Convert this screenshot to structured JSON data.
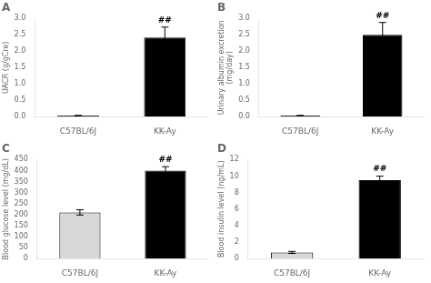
{
  "chart_data": [
    {
      "type": "bar",
      "title": "A",
      "ylabel": "UACR (g/gCre)",
      "categories": [
        "C57BL/6J",
        "KK-Ay"
      ],
      "values": [
        0.03,
        2.42
      ],
      "errors": [
        0.01,
        0.32
      ],
      "colors": [
        "black",
        "black"
      ],
      "ylim": [
        0,
        3.0
      ],
      "yticks": [
        {
          "value": 0,
          "label": "0.0"
        },
        0.5,
        {
          "value": 1,
          "label": "1.0"
        },
        1.5,
        {
          "value": 2,
          "label": "2.0"
        },
        2.5,
        {
          "value": 3,
          "label": "3.0"
        }
      ],
      "annotations": [
        {
          "category": "KK-Ay",
          "text": "##"
        }
      ],
      "grid": false
    },
    {
      "type": "bar",
      "title": "B",
      "ylabel": "Urinary albumin excretion\n(mg/day)",
      "categories": [
        "C57BL/6J",
        "KK-Ay"
      ],
      "values": [
        0.03,
        2.5
      ],
      "errors": [
        0.01,
        0.38
      ],
      "colors": [
        "black",
        "black"
      ],
      "ylim": [
        0,
        3.0
      ],
      "yticks": [
        {
          "value": 0,
          "label": "0.0"
        },
        0.5,
        {
          "value": 1,
          "label": "1.0"
        },
        1.5,
        {
          "value": 2,
          "label": "2.0"
        },
        2.5,
        {
          "value": 3,
          "label": "3.0"
        }
      ],
      "annotations": [
        {
          "category": "KK-Ay",
          "text": "##"
        }
      ],
      "grid": false
    },
    {
      "type": "bar",
      "title": "C",
      "ylabel": "Blood glucose level (mg/dL)",
      "categories": [
        "C57BL/6J",
        "KK-Ay"
      ],
      "values": [
        210,
        400
      ],
      "errors": [
        12,
        18
      ],
      "colors": [
        "#d8d8d8",
        "black"
      ],
      "ylim": [
        0,
        450
      ],
      "yticks": [
        0,
        50,
        100,
        150,
        200,
        250,
        300,
        350,
        400,
        450
      ],
      "annotations": [
        {
          "category": "KK-Ay",
          "text": "##"
        }
      ],
      "grid": false
    },
    {
      "type": "bar",
      "title": "D",
      "ylabel": "Blood insulin level (ng/mL)",
      "categories": [
        "C57BL/6J",
        "KK-Ay"
      ],
      "values": [
        0.75,
        9.5
      ],
      "errors": [
        0.12,
        0.5
      ],
      "colors": [
        "#d8d8d8",
        "black"
      ],
      "ylim": [
        0,
        12
      ],
      "yticks": [
        0,
        2,
        4,
        6,
        8,
        10,
        12
      ],
      "annotations": [
        {
          "category": "KK-Ay",
          "text": "##"
        }
      ],
      "grid": false
    }
  ]
}
